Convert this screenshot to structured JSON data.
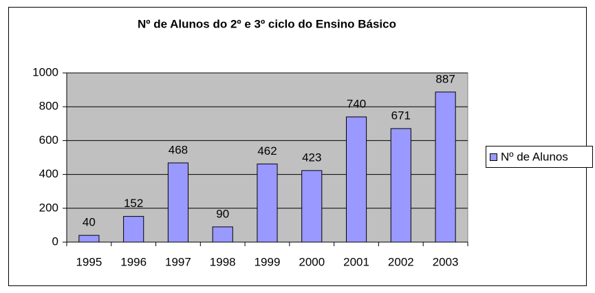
{
  "chart_data": {
    "type": "bar",
    "title": "Nº de Alunos do 2º e 3º ciclo do Ensino Básico",
    "categories": [
      "1995",
      "1996",
      "1997",
      "1998",
      "1999",
      "2000",
      "2001",
      "2002",
      "2003"
    ],
    "series": [
      {
        "name": "Nº de Alunos",
        "color": "#9999ff",
        "values": [
          40,
          152,
          468,
          90,
          462,
          423,
          740,
          671,
          887
        ]
      }
    ],
    "ylim": [
      0,
      1000
    ],
    "yticks": [
      0,
      200,
      400,
      600,
      800,
      1000
    ],
    "grid": true,
    "legend": "right"
  }
}
